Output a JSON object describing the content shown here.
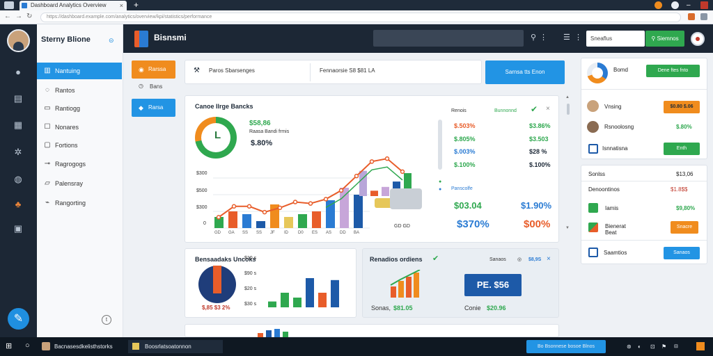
{
  "browser": {
    "tab_title": "Dashboard Analytics Overview",
    "url": "https://dashboard.example.com/analytics/overview/kpi/statistics/performance"
  },
  "sidebar": {
    "brand": "Sterny Blione",
    "items": [
      {
        "label": "Nantuing",
        "icon": "chart-icon"
      },
      {
        "label": "Rantos",
        "icon": "chat-icon"
      },
      {
        "label": "Rantiogg",
        "icon": "folder-icon"
      },
      {
        "label": "Nonares",
        "icon": "grid-icon"
      },
      {
        "label": "Fortions",
        "icon": "box-icon"
      },
      {
        "label": "Ragrogogs",
        "icon": "sliders-icon"
      },
      {
        "label": "Palensray",
        "icon": "list-icon"
      },
      {
        "label": "Rangorting",
        "icon": "link-icon"
      }
    ]
  },
  "header": {
    "title": "Bisnsmi",
    "search_value": "Sneaflus",
    "search_button": "Siemnos"
  },
  "quick": {
    "orange_btn": "Rarssa",
    "plain": "Bans",
    "blue_btn": "Rarsa"
  },
  "infobar": {
    "left": "Paros Sbarsenges",
    "right": "Fennaorsie S8 $81 LA",
    "button": "Sarnsa tts Enon"
  },
  "main": {
    "title": "Canoe Ilrge Bancks",
    "kpi_green": "$58,86",
    "kpi_sub": "Raasa Bandi frmis",
    "kpi_big": "$.80%",
    "yaxis": [
      "$300",
      "$500",
      "$300",
      "0"
    ],
    "xticks": [
      "GD",
      "GA",
      "SS",
      "SS",
      "JF",
      "ID",
      "D0",
      "ES",
      "AS",
      "DD",
      "BA"
    ],
    "bars": [
      0.16,
      0.24,
      0.2,
      0.1,
      0.34,
      0.16,
      0.2,
      0.24,
      0.4,
      0.58,
      0.48,
      0.66,
      0.14,
      0.24,
      0.38,
      0.6
    ],
    "line": [
      0.15,
      0.3,
      0.3,
      0.22,
      0.28,
      0.36,
      0.34,
      0.4,
      0.52,
      0.72,
      0.92,
      0.96,
      0.78
    ],
    "right_head_left": "Renois",
    "right_head_mid": "Bunnonnd",
    "col1": [
      "$.503%",
      "$.805%",
      "$.003%",
      "$.100%"
    ],
    "col2": [
      "$3.86%",
      "$3.503",
      "$28 %",
      "$.100%"
    ],
    "sub_label": "Panscolfe",
    "big1": "$03.04",
    "big2": "$1.90%",
    "big3": "$370%",
    "big4": "$00%"
  },
  "bottom_left": {
    "title": "Bensaadaks Uncoks",
    "labels": [
      "$10 s",
      "$90 s",
      "$20 s",
      "$30 s"
    ],
    "pct": "$,85 $3 2%",
    "bars": [
      0.12,
      0.3,
      0.2,
      0.6,
      0.3,
      0.56
    ]
  },
  "bottom_mid": {
    "title": "Renadios ordiens",
    "right_label": "Sanaos",
    "right_val": "$8,9S",
    "big": "PE. $56",
    "l1_label": "Sonas,",
    "l1_val": "$81.05",
    "l2_label": "Conie",
    "l2_val": "$20.96"
  },
  "rpanel1": {
    "head": "Bomd",
    "head_btn": "Dene ftes fnto",
    "rows": [
      {
        "label": "Vnsing",
        "btn": "$0.80 $.06"
      },
      {
        "label": "Rsnoolosng",
        "val": "$.80%"
      },
      {
        "label": "Isnnatisna",
        "btn": "Enth"
      }
    ]
  },
  "rpanel2": {
    "rows": [
      {
        "label": "Sonlss",
        "val": "$13,06"
      },
      {
        "label": "Denoontinos",
        "val": "$1.8$$"
      },
      {
        "label": "Iamis",
        "val": "$9,80%"
      },
      {
        "label": "Bienerat Beat",
        "btn": "Snacre"
      },
      {
        "label": "Saamtios",
        "btn": "Sanaos"
      }
    ]
  },
  "taskbar": {
    "item1": "Bacnasesdkelisthstorks",
    "item2": "Boosrlatsoatonnon",
    "right_btn": "Bo Bsonnese bosoe Blnos"
  }
}
